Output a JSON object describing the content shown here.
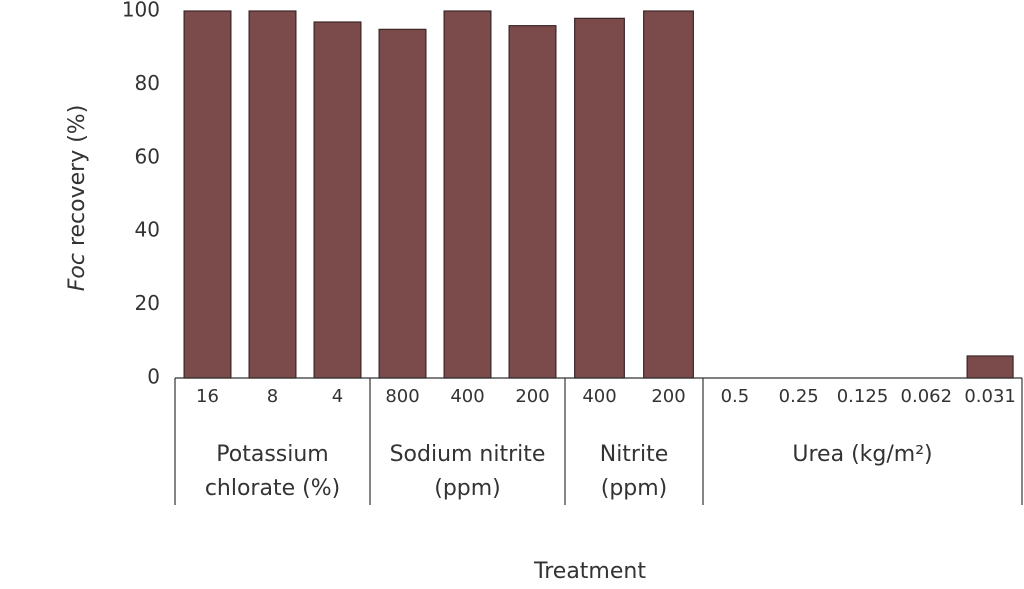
{
  "chart_data": {
    "type": "bar",
    "y_label": "Foc recovery (%)",
    "x_label": "Treatment",
    "ylim": [
      0,
      100
    ],
    "yticks": [
      0,
      20,
      40,
      60,
      80,
      100
    ],
    "color": "#7b4a4a",
    "groups": [
      {
        "name": "Potassium chlorate (%)",
        "categories": [
          "16",
          "8",
          "4"
        ],
        "values": [
          100,
          100,
          97
        ]
      },
      {
        "name": "Sodium nitrite (ppm)",
        "categories": [
          "800",
          "400",
          "200"
        ],
        "values": [
          95,
          100,
          96
        ]
      },
      {
        "name": "Nitrite (ppm)",
        "categories": [
          "400",
          "200"
        ],
        "values": [
          98,
          100
        ]
      },
      {
        "name": "Urea (kg/m²)",
        "categories": [
          "0.5",
          "0.25",
          "0.125",
          "0.062",
          "0.031"
        ],
        "values": [
          0,
          0,
          0,
          0,
          6
        ]
      }
    ]
  }
}
